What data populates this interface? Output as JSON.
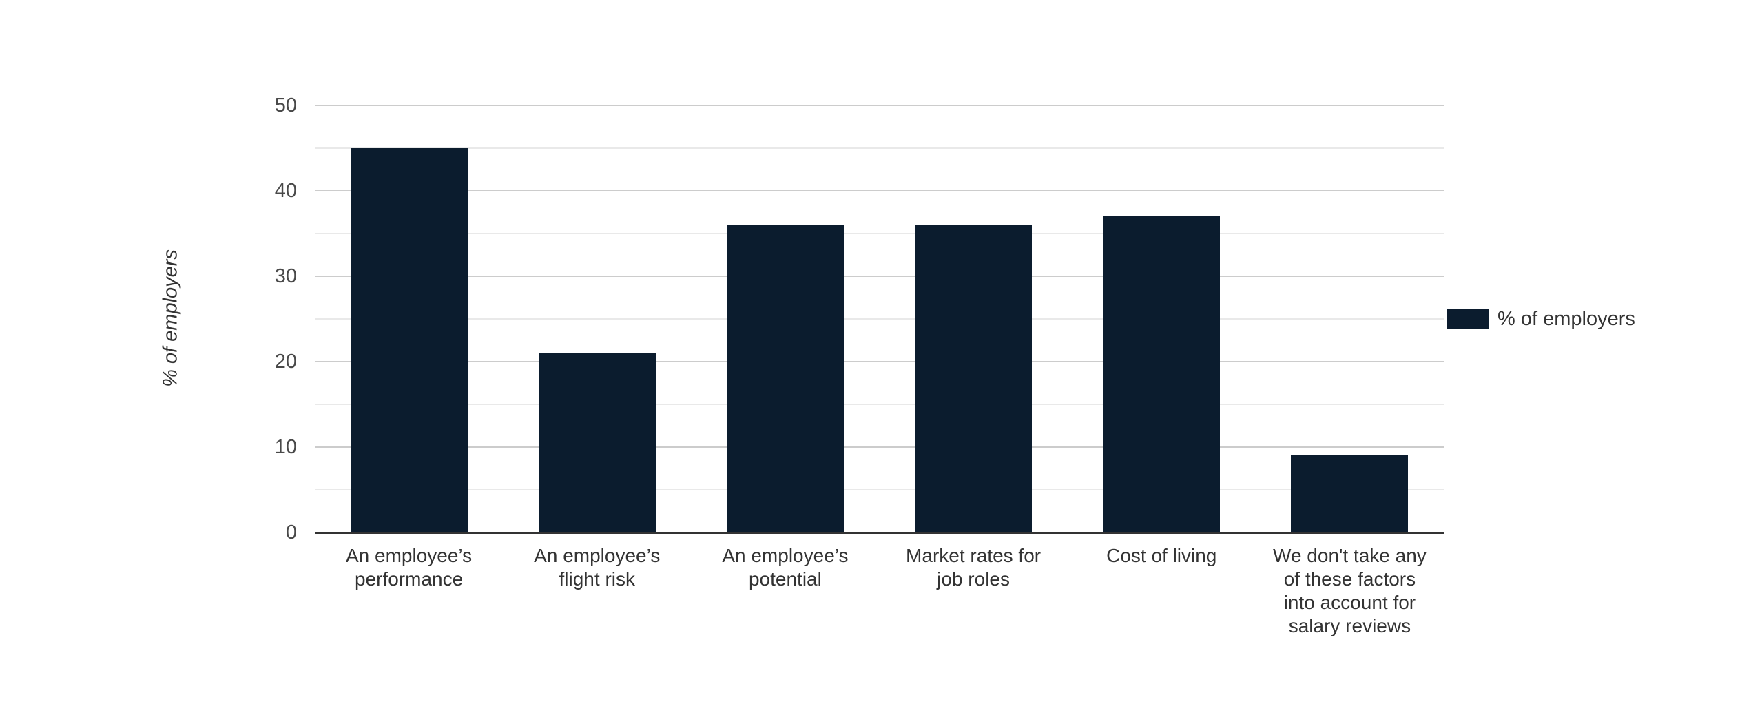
{
  "chart_data": {
    "type": "bar",
    "title": "",
    "categories": [
      "An employee’s performance",
      "An employee’s flight risk",
      "An employee’s potential",
      "Market rates for job roles",
      "Cost of living",
      "We don't take any of these factors into account for salary reviews"
    ],
    "values": [
      45,
      21,
      36,
      36,
      37,
      9
    ],
    "series": [
      {
        "name": "% of employers",
        "values": [
          45,
          21,
          36,
          36,
          37,
          9
        ]
      }
    ],
    "xlabel": "",
    "ylabel": "% of employers",
    "ylim": [
      0,
      50
    ],
    "yticks": [
      0,
      10,
      20,
      30,
      40,
      50
    ],
    "ytick_labels": [
      "0",
      "10",
      "20",
      "30",
      "40",
      "50"
    ],
    "minor_gridline_every": 5,
    "grid": true,
    "legend_position": "right",
    "colors": {
      "bar": "#0b1c2e",
      "major_gridline": "#cccccc",
      "minor_gridline": "#e9e9e9",
      "axis_line": "#333333",
      "tick_label": "#494949",
      "label_text": "#333333"
    }
  }
}
